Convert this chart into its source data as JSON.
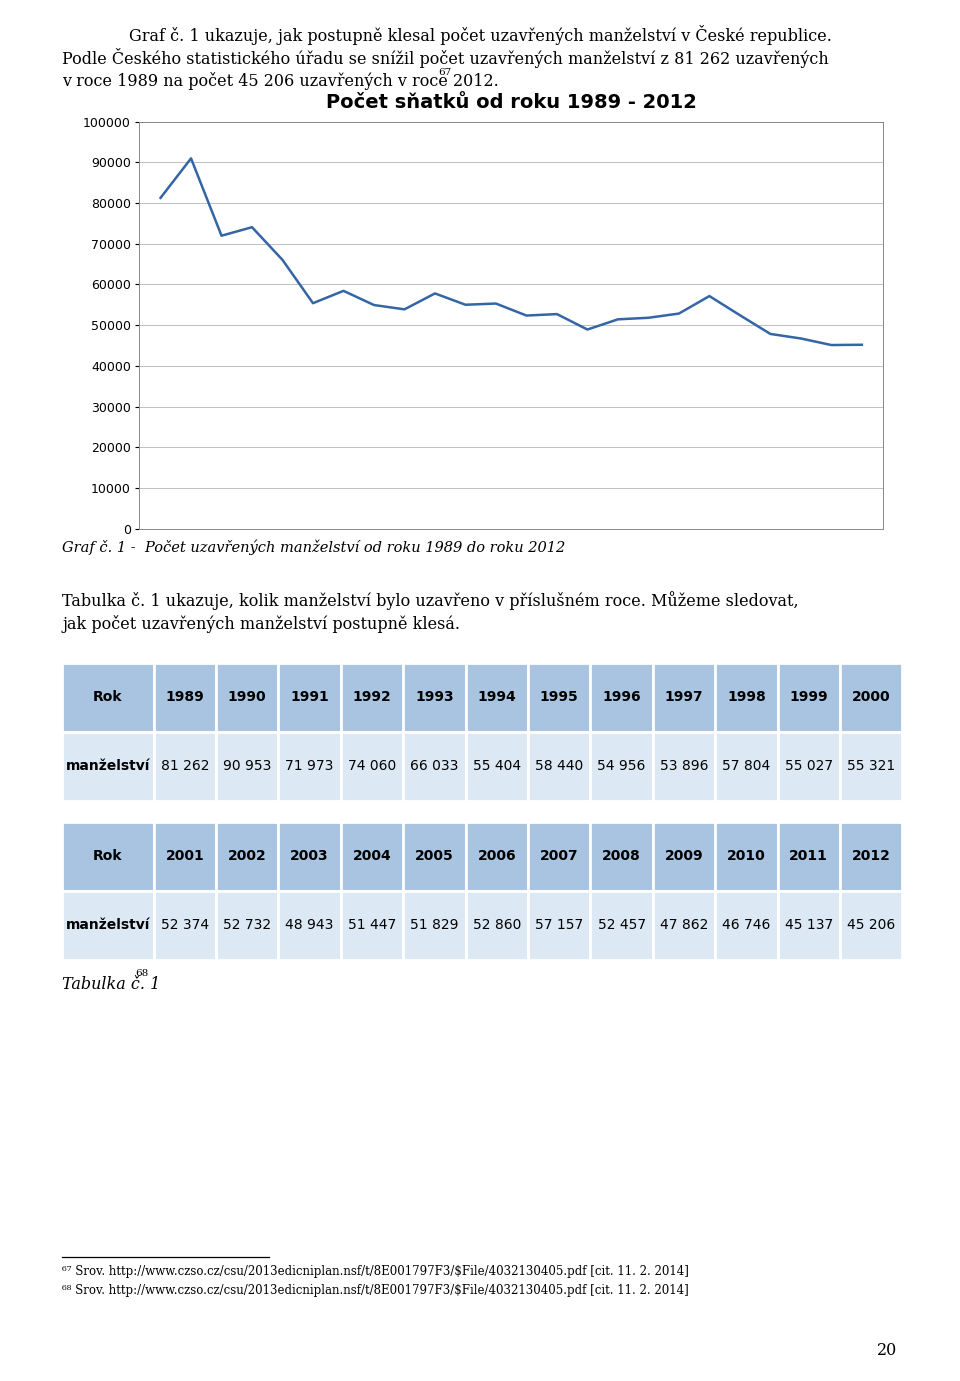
{
  "title_chart": "Počet sňatků od roku 1989 - 2012",
  "years": [
    1989,
    1990,
    1991,
    1992,
    1993,
    1994,
    1995,
    1996,
    1997,
    1998,
    1999,
    2000,
    2001,
    2002,
    2003,
    2004,
    2005,
    2006,
    2007,
    2008,
    2009,
    2010,
    2011,
    2012
  ],
  "values": [
    81262,
    90953,
    71973,
    74060,
    66033,
    55404,
    58440,
    54956,
    53896,
    57804,
    55027,
    55321,
    52374,
    52732,
    48943,
    51447,
    51829,
    52860,
    57157,
    52457,
    47862,
    46746,
    45137,
    45206
  ],
  "line_color": "#3465a4",
  "chart_bg": "#ffffff",
  "ylim": [
    0,
    100000
  ],
  "yticks": [
    0,
    10000,
    20000,
    30000,
    40000,
    50000,
    60000,
    70000,
    80000,
    90000,
    100000
  ],
  "grid_color": "#c0c0c0",
  "table_header_bg": "#a8c4e0",
  "table_data_bg": "#dce9f5",
  "table_row1_years": [
    "Rok",
    "1989",
    "1990",
    "1991",
    "1992",
    "1993",
    "1994",
    "1995",
    "1996",
    "1997",
    "1998",
    "1999",
    "2000"
  ],
  "table_row1_vals": [
    "manželství",
    "81 262",
    "90 953",
    "71 973",
    "74 060",
    "66 033",
    "55 404",
    "58 440",
    "54 956",
    "53 896",
    "57 804",
    "55 027",
    "55 321"
  ],
  "table_row2_years": [
    "Rok",
    "2001",
    "2002",
    "2003",
    "2004",
    "2005",
    "2006",
    "2007",
    "2008",
    "2009",
    "2010",
    "2011",
    "2012"
  ],
  "table_row2_vals": [
    "manželství",
    "52 374",
    "52 732",
    "48 943",
    "51 447",
    "51 829",
    "52 860",
    "57 157",
    "52 457",
    "47 862",
    "46 746",
    "45 137",
    "45 206"
  ],
  "bg_page": "#ffffff"
}
